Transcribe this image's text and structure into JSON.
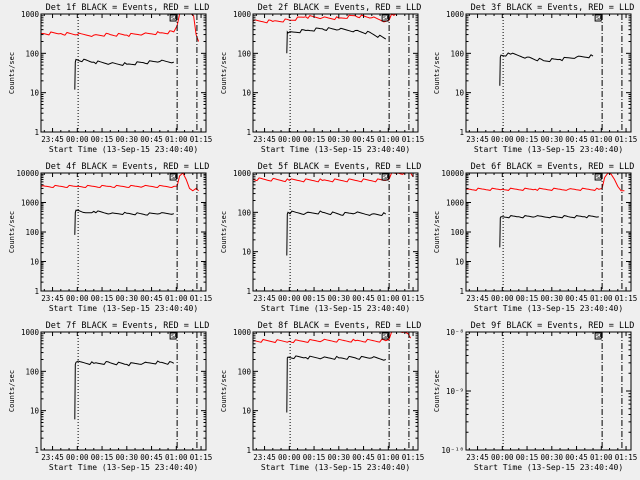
{
  "figure": {
    "xlabel": "Start Time (13-Sep-15 23:40:40)",
    "ylabel": "Counts/sec",
    "event_color": "#000000",
    "lld_color": "#ff0000",
    "background": "#efefef"
  },
  "chart_data": [
    {
      "type": "line",
      "title": "Det 1f BLACK = Events, RED = LLD",
      "xlabel": "Start Time (13-Sep-15 23:40:40)",
      "ylabel": "Counts/sec",
      "xlim": [
        -2,
        98
      ],
      "yscale": "log",
      "ylim": [
        1,
        1000
      ],
      "xticks": [
        5,
        20,
        35,
        50,
        65,
        80,
        95
      ],
      "xticklabels": [
        "23:45",
        "00:00",
        "00:15",
        "00:30",
        "00:45",
        "01:00",
        "01:15"
      ],
      "yticks": [
        1,
        10,
        100,
        1000
      ],
      "yticklabels": [
        "1",
        "10",
        "100",
        "1000"
      ],
      "vlines": [
        {
          "x": 20.5,
          "style": "dotted"
        },
        {
          "x": 80.5,
          "style": "dashdot"
        },
        {
          "x": 92.5,
          "style": "dashdot"
        }
      ],
      "annotation": "SA",
      "series": [
        {
          "name": "Events",
          "color": "#000000",
          "x": [
            18.5,
            18.8,
            19.2,
            30,
            40,
            50,
            60,
            70,
            78.5
          ],
          "y": [
            12,
            60,
            70,
            60,
            55,
            53,
            58,
            62,
            60
          ]
        },
        {
          "name": "LLD",
          "color": "#ff0000",
          "x": [
            -2,
            10,
            20,
            30,
            40,
            50,
            60,
            70,
            78.5,
            80.5,
            82,
            85,
            87,
            89,
            90.5,
            92,
            93.5
          ],
          "y": [
            320,
            320,
            300,
            290,
            300,
            290,
            310,
            330,
            350,
            500,
            1000,
            1000,
            1000,
            1000,
            900,
            300,
            200
          ]
        }
      ]
    },
    {
      "type": "line",
      "title": "Det 2f BLACK = Events, RED = LLD",
      "xlabel": "Start Time (13-Sep-15 23:40:40)",
      "ylabel": "Counts/sec",
      "xlim": [
        -2,
        98
      ],
      "yscale": "log",
      "ylim": [
        1,
        1000
      ],
      "xticks": [
        5,
        20,
        35,
        50,
        65,
        80,
        95
      ],
      "xticklabels": [
        "23:45",
        "00:00",
        "00:15",
        "00:30",
        "00:45",
        "01:00",
        "01:15"
      ],
      "yticks": [
        1,
        10,
        100,
        1000
      ],
      "yticklabels": [
        "1",
        "10",
        "100",
        "1000"
      ],
      "vlines": [
        {
          "x": 20.5,
          "style": "dotted"
        },
        {
          "x": 80.5,
          "style": "dashdot"
        },
        {
          "x": 92.5,
          "style": "dashdot"
        }
      ],
      "annotation": "SA",
      "series": [
        {
          "name": "Events",
          "color": "#000000",
          "x": [
            18.5,
            18.8,
            19.2,
            30,
            40,
            50,
            60,
            70,
            78.5
          ],
          "y": [
            100,
            350,
            330,
            380,
            420,
            400,
            380,
            320,
            230
          ]
        },
        {
          "name": "LLD",
          "color": "#ff0000",
          "x": [
            -2,
            10,
            20,
            30,
            40,
            50,
            60,
            70,
            78.5,
            80.5,
            82,
            86,
            90
          ],
          "y": [
            650,
            650,
            700,
            850,
            800,
            780,
            900,
            800,
            650,
            700,
            1000,
            1000,
            1000
          ]
        }
      ]
    },
    {
      "type": "line",
      "title": "Det 3f BLACK = Events, RED = LLD",
      "xlabel": "Start Time (13-Sep-15 23:40:40)",
      "ylabel": "Counts/sec",
      "xlim": [
        -2,
        98
      ],
      "yscale": "log",
      "ylim": [
        1,
        1000
      ],
      "xticks": [
        5,
        20,
        35,
        50,
        65,
        80,
        95
      ],
      "xticklabels": [
        "23:45",
        "00:00",
        "00:15",
        "00:30",
        "00:45",
        "01:00",
        "01:15"
      ],
      "yticks": [
        1,
        10,
        100,
        1000
      ],
      "yticklabels": [
        "1",
        "10",
        "100",
        "1000"
      ],
      "vlines": [
        {
          "x": 20.5,
          "style": "dotted"
        },
        {
          "x": 80.5,
          "style": "dashdot"
        },
        {
          "x": 92.5,
          "style": "dashdot"
        }
      ],
      "annotation": "SA",
      "series": [
        {
          "name": "Events",
          "color": "#000000",
          "x": [
            18.5,
            18.8,
            19.2,
            25,
            35,
            45,
            55,
            65,
            75
          ],
          "y": [
            15,
            80,
            90,
            95,
            80,
            65,
            70,
            80,
            85
          ]
        }
      ]
    },
    {
      "type": "line",
      "title": "Det 4f BLACK = Events, RED = LLD",
      "xlabel": "Start Time (13-Sep-15 23:40:40)",
      "ylabel": "Counts/sec",
      "xlim": [
        -2,
        98
      ],
      "yscale": "log",
      "ylim": [
        1,
        10000
      ],
      "xticks": [
        5,
        20,
        35,
        50,
        65,
        80,
        95
      ],
      "xticklabels": [
        "23:45",
        "00:00",
        "00:15",
        "00:30",
        "00:45",
        "01:00",
        "01:15"
      ],
      "yticks": [
        1,
        10,
        100,
        1000,
        10000
      ],
      "yticklabels": [
        "1",
        "10",
        "100",
        "1000",
        "10000"
      ],
      "vlines": [
        {
          "x": 20.5,
          "style": "dotted"
        },
        {
          "x": 80.5,
          "style": "dashdot"
        },
        {
          "x": 92.5,
          "style": "dashdot"
        }
      ],
      "annotation": "SA",
      "series": [
        {
          "name": "Events",
          "color": "#000000",
          "x": [
            18.5,
            18.8,
            19.2,
            25,
            30,
            40,
            50,
            60,
            70,
            78.5
          ],
          "y": [
            80,
            450,
            550,
            450,
            500,
            420,
            430,
            400,
            420,
            420
          ]
        },
        {
          "name": "LLD",
          "color": "#ff0000",
          "x": [
            -2,
            20,
            40,
            60,
            78.5,
            80.5,
            82,
            84,
            86,
            88,
            90,
            92,
            93.5
          ],
          "y": [
            3500,
            3500,
            3500,
            3500,
            3500,
            3600,
            8000,
            10000,
            6000,
            3000,
            2500,
            3000,
            2500
          ]
        }
      ]
    },
    {
      "type": "line",
      "title": "Det 5f BLACK = Events, RED = LLD",
      "xlabel": "Start Time (13-Sep-15 23:40:40)",
      "ylabel": "Counts/sec",
      "xlim": [
        -2,
        98
      ],
      "yscale": "log",
      "ylim": [
        1,
        1000
      ],
      "xticks": [
        5,
        20,
        35,
        50,
        65,
        80,
        95
      ],
      "xticklabels": [
        "23:45",
        "00:00",
        "00:15",
        "00:30",
        "00:45",
        "01:00",
        "01:15"
      ],
      "yticks": [
        1,
        10,
        100,
        1000
      ],
      "yticklabels": [
        "1",
        "10",
        "100",
        "1000"
      ],
      "vlines": [
        {
          "x": 20.5,
          "style": "dotted"
        },
        {
          "x": 80.5,
          "style": "dashdot"
        },
        {
          "x": 92.5,
          "style": "dashdot"
        }
      ],
      "annotation": "SA",
      "series": [
        {
          "name": "Events",
          "color": "#000000",
          "x": [
            18.5,
            18.8,
            19.2,
            30,
            40,
            50,
            60,
            70,
            78.5
          ],
          "y": [
            8,
            90,
            100,
            95,
            100,
            90,
            95,
            90,
            90
          ]
        },
        {
          "name": "LLD",
          "color": "#ff0000",
          "x": [
            -2,
            20,
            40,
            60,
            78.5,
            80.5,
            82,
            86,
            90,
            93.5,
            95
          ],
          "y": [
            700,
            650,
            650,
            650,
            650,
            700,
            1000,
            1000,
            1000,
            1000,
            800
          ]
        }
      ]
    },
    {
      "type": "line",
      "title": "Det 6f BLACK = Events, RED = LLD",
      "xlabel": "Start Time (13-Sep-15 23:40:40)",
      "ylabel": "Counts/sec",
      "xlim": [
        -2,
        98
      ],
      "yscale": "log",
      "ylim": [
        1,
        10000
      ],
      "xticks": [
        5,
        20,
        35,
        50,
        65,
        80,
        95
      ],
      "xticklabels": [
        "23:45",
        "00:00",
        "00:15",
        "00:30",
        "00:45",
        "01:00",
        "01:15"
      ],
      "yticks": [
        1,
        10,
        100,
        1000,
        10000
      ],
      "yticklabels": [
        "1",
        "10",
        "100",
        "1000",
        "10000"
      ],
      "vlines": [
        {
          "x": 20.5,
          "style": "dotted"
        },
        {
          "x": 80.5,
          "style": "dashdot"
        },
        {
          "x": 92.5,
          "style": "dashdot"
        }
      ],
      "annotation": "SA",
      "series": [
        {
          "name": "Events",
          "color": "#000000",
          "x": [
            18.5,
            18.8,
            19.2,
            30,
            40,
            50,
            60,
            70,
            78.5
          ],
          "y": [
            30,
            300,
            330,
            330,
            330,
            330,
            330,
            330,
            330
          ]
        },
        {
          "name": "LLD",
          "color": "#ff0000",
          "x": [
            -2,
            20,
            40,
            60,
            78.5,
            80.5,
            82,
            84,
            86,
            88,
            90,
            92,
            94
          ],
          "y": [
            2800,
            2800,
            2800,
            2800,
            2800,
            3000,
            7000,
            10000,
            9000,
            6000,
            3500,
            2500,
            2500
          ]
        }
      ]
    },
    {
      "type": "line",
      "title": "Det 7f BLACK = Events, RED = LLD",
      "xlabel": "Start Time (13-Sep-15 23:40:40)",
      "ylabel": "Counts/sec",
      "xlim": [
        -2,
        98
      ],
      "yscale": "log",
      "ylim": [
        1,
        1000
      ],
      "xticks": [
        5,
        20,
        35,
        50,
        65,
        80,
        95
      ],
      "xticklabels": [
        "23:45",
        "00:00",
        "00:15",
        "00:30",
        "00:45",
        "01:00",
        "01:15"
      ],
      "yticks": [
        1,
        10,
        100,
        1000
      ],
      "yticklabels": [
        "1",
        "10",
        "100",
        "1000"
      ],
      "vlines": [
        {
          "x": 20.5,
          "style": "dotted"
        },
        {
          "x": 80.5,
          "style": "dashdot"
        },
        {
          "x": 92.5,
          "style": "dashdot"
        }
      ],
      "annotation": "SA",
      "series": [
        {
          "name": "Events",
          "color": "#000000",
          "x": [
            18.5,
            18.8,
            19.2,
            30,
            40,
            50,
            60,
            70,
            78.5
          ],
          "y": [
            6,
            150,
            170,
            160,
            165,
            150,
            160,
            170,
            160
          ]
        }
      ]
    },
    {
      "type": "line",
      "title": "Det 8f BLACK = Events, RED = LLD",
      "xlabel": "Start Time (13-Sep-15 23:40:40)",
      "ylabel": "Counts/sec",
      "xlim": [
        -2,
        98
      ],
      "yscale": "log",
      "ylim": [
        1,
        1000
      ],
      "xticks": [
        5,
        20,
        35,
        50,
        65,
        80,
        95
      ],
      "xticklabels": [
        "23:45",
        "00:00",
        "00:15",
        "00:30",
        "00:45",
        "01:00",
        "01:15"
      ],
      "yticks": [
        1,
        10,
        100,
        1000
      ],
      "yticklabels": [
        "1",
        "10",
        "100",
        "1000"
      ],
      "vlines": [
        {
          "x": 20.5,
          "style": "dotted"
        },
        {
          "x": 80.5,
          "style": "dashdot"
        },
        {
          "x": 92.5,
          "style": "dashdot"
        }
      ],
      "annotation": "SA",
      "series": [
        {
          "name": "Events",
          "color": "#000000",
          "x": [
            18.5,
            18.8,
            19.2,
            30,
            40,
            50,
            60,
            70,
            78.5
          ],
          "y": [
            9,
            220,
            230,
            225,
            220,
            220,
            220,
            220,
            200
          ]
        },
        {
          "name": "LLD",
          "color": "#ff0000",
          "x": [
            -2,
            20,
            40,
            60,
            78.5,
            80.5,
            82,
            86,
            90,
            92,
            93.5
          ],
          "y": [
            600,
            580,
            600,
            600,
            600,
            650,
            1000,
            1000,
            1000,
            900,
            700
          ]
        }
      ]
    },
    {
      "type": "line",
      "title": "Det 9f BLACK = Events, RED = LLD",
      "xlabel": "Start Time (13-Sep-15 23:40:40)",
      "ylabel": "Counts/sec",
      "xlim": [
        -2,
        98
      ],
      "yscale": "log",
      "ylim": [
        1e-10,
        1e-08
      ],
      "xticks": [
        5,
        20,
        35,
        50,
        65,
        80,
        95
      ],
      "xticklabels": [
        "23:45",
        "00:00",
        "00:15",
        "00:30",
        "00:45",
        "01:00",
        "01:15"
      ],
      "yticks": [
        1e-10,
        1e-09,
        1e-08
      ],
      "yticklabels": [
        "10⁻¹⁰",
        "10⁻⁹",
        "10⁻⁸"
      ],
      "vlines": [
        {
          "x": 20.5,
          "style": "dotted"
        },
        {
          "x": 80.5,
          "style": "dashdot"
        },
        {
          "x": 92.5,
          "style": "dashdot"
        }
      ],
      "annotation": "SA",
      "series": []
    }
  ]
}
